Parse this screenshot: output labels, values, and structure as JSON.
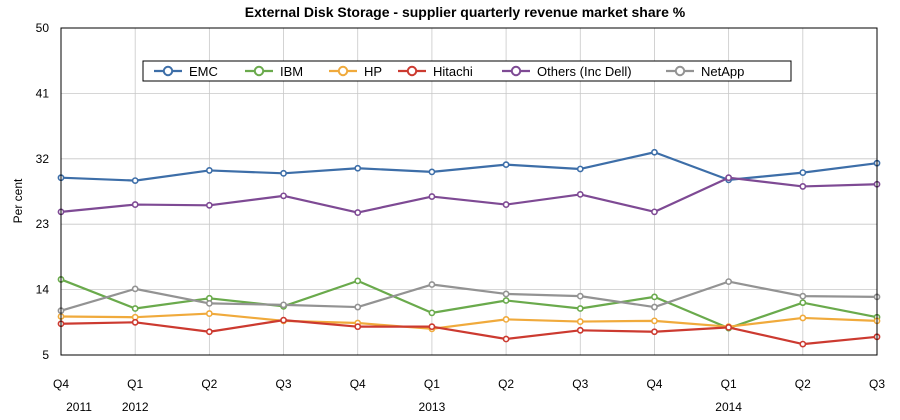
{
  "chart_data": {
    "type": "line",
    "title": "External Disk Storage - supplier quarterly revenue market share %",
    "ylabel": "Per cent",
    "xlabel": "",
    "ylim": [
      5,
      50
    ],
    "yticks": [
      5,
      14,
      23,
      32,
      41,
      50
    ],
    "categories": [
      "Q4",
      "Q1",
      "Q2",
      "Q3",
      "Q4",
      "Q1",
      "Q2",
      "Q3",
      "Q4",
      "Q1",
      "Q2",
      "Q3"
    ],
    "year_labels": [
      {
        "index": 0,
        "label": "2011"
      },
      {
        "index": 1,
        "label": "2012"
      },
      {
        "index": 5,
        "label": "2013"
      },
      {
        "index": 9,
        "label": "2014"
      }
    ],
    "grid": true,
    "legend_position": "top",
    "series": [
      {
        "name": "EMC",
        "color": "#3d6ea8",
        "values": [
          29.4,
          29.0,
          30.4,
          30.0,
          30.7,
          30.2,
          31.2,
          30.6,
          32.9,
          29.1,
          30.1,
          31.4
        ]
      },
      {
        "name": "IBM",
        "color": "#6aaa4c",
        "values": [
          15.4,
          11.4,
          12.8,
          11.7,
          15.2,
          10.8,
          12.5,
          11.4,
          13.0,
          8.7,
          12.2,
          10.2
        ]
      },
      {
        "name": "HP",
        "color": "#f0aa3c",
        "values": [
          10.3,
          10.2,
          10.7,
          9.7,
          9.4,
          8.6,
          9.9,
          9.6,
          9.7,
          8.9,
          10.1,
          9.7
        ]
      },
      {
        "name": "Hitachi",
        "color": "#cc3a30",
        "values": [
          9.3,
          9.5,
          8.2,
          9.8,
          8.9,
          8.9,
          7.2,
          8.4,
          8.2,
          8.8,
          6.5,
          7.5
        ]
      },
      {
        "name": "Others (Inc Dell)",
        "color": "#7e4a94",
        "values": [
          24.7,
          25.7,
          25.6,
          26.9,
          24.6,
          26.8,
          25.7,
          27.1,
          24.7,
          29.4,
          28.2,
          28.5
        ]
      },
      {
        "name": "NetApp",
        "color": "#939393",
        "values": [
          11.1,
          14.1,
          12.1,
          11.9,
          11.6,
          14.7,
          13.4,
          13.1,
          11.6,
          15.1,
          13.1,
          13.0
        ]
      }
    ]
  }
}
